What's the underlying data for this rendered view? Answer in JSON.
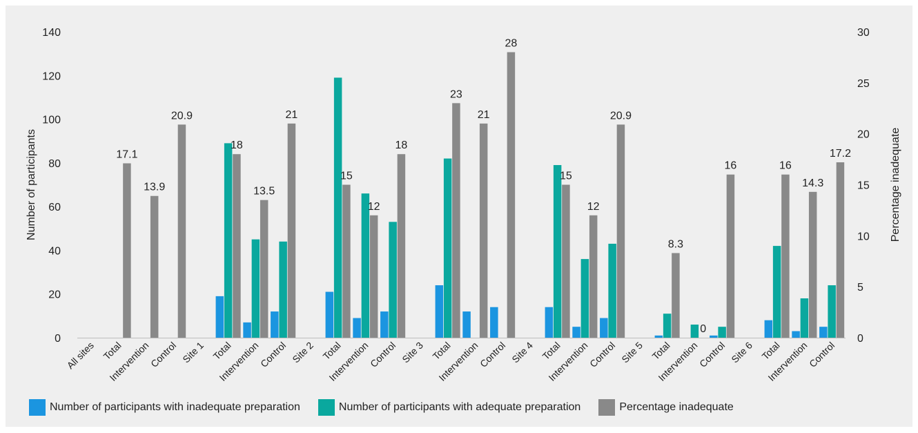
{
  "chart_data": {
    "type": "bar",
    "categories": [
      "All sites",
      "Total",
      "Intervention",
      "Control",
      "Site 1",
      "Total",
      "Intervention",
      "Control",
      "Site 2",
      "Total",
      "Intervention",
      "Control",
      "Site 3",
      "Total",
      "Intervention",
      "Control",
      "Site 4",
      "Total",
      "Intervention",
      "Control",
      "Site 5",
      "Total",
      "Intervention",
      "Control",
      "Site 6",
      "Total",
      "Intervention",
      "Control"
    ],
    "series": [
      {
        "name": "Number of participants with inadequate preparation",
        "axis": "left",
        "color": "#1b95e0",
        "values": [
          null,
          null,
          null,
          null,
          null,
          19,
          7,
          12,
          null,
          21,
          9,
          12,
          null,
          24,
          12,
          14,
          null,
          14,
          5,
          9,
          null,
          1,
          null,
          1,
          null,
          8,
          3,
          5
        ]
      },
      {
        "name": "Number of participants with adequate preparation",
        "axis": "left",
        "color": "#0aa89e",
        "values": [
          null,
          null,
          null,
          null,
          null,
          89,
          45,
          44,
          null,
          119,
          66,
          53,
          null,
          82,
          null,
          null,
          null,
          79,
          36,
          43,
          null,
          11,
          6,
          5,
          null,
          42,
          18,
          24
        ]
      },
      {
        "name": "Percentage inadequate",
        "axis": "right",
        "color": "#898989",
        "values": [
          null,
          17.1,
          13.9,
          20.9,
          null,
          18,
          13.5,
          21,
          null,
          15,
          12,
          18,
          null,
          23,
          21,
          28,
          null,
          15,
          12,
          20.9,
          null,
          8.3,
          0,
          16,
          null,
          16,
          14.3,
          17.2
        ],
        "labels": [
          null,
          "17.1",
          "13.9",
          "20.9",
          null,
          "18",
          "13.5",
          "21",
          null,
          "15",
          "12",
          "18",
          null,
          "23",
          "21",
          "28",
          null,
          "15",
          "12",
          "20.9",
          null,
          "8.3",
          "0",
          "16",
          null,
          "16",
          "14.3",
          "17.2"
        ]
      }
    ],
    "ylabel": "Number of participants",
    "y2label": "Percentage inadequate",
    "ylim": [
      0,
      140
    ],
    "yticks": [
      "0",
      "20",
      "40",
      "60",
      "80",
      "100",
      "120",
      "140"
    ],
    "y2lim": [
      0,
      30
    ],
    "y2ticks": [
      "0",
      "5",
      "10",
      "15",
      "20",
      "25",
      "30"
    ],
    "grid": false,
    "legend_position": "bottom"
  }
}
